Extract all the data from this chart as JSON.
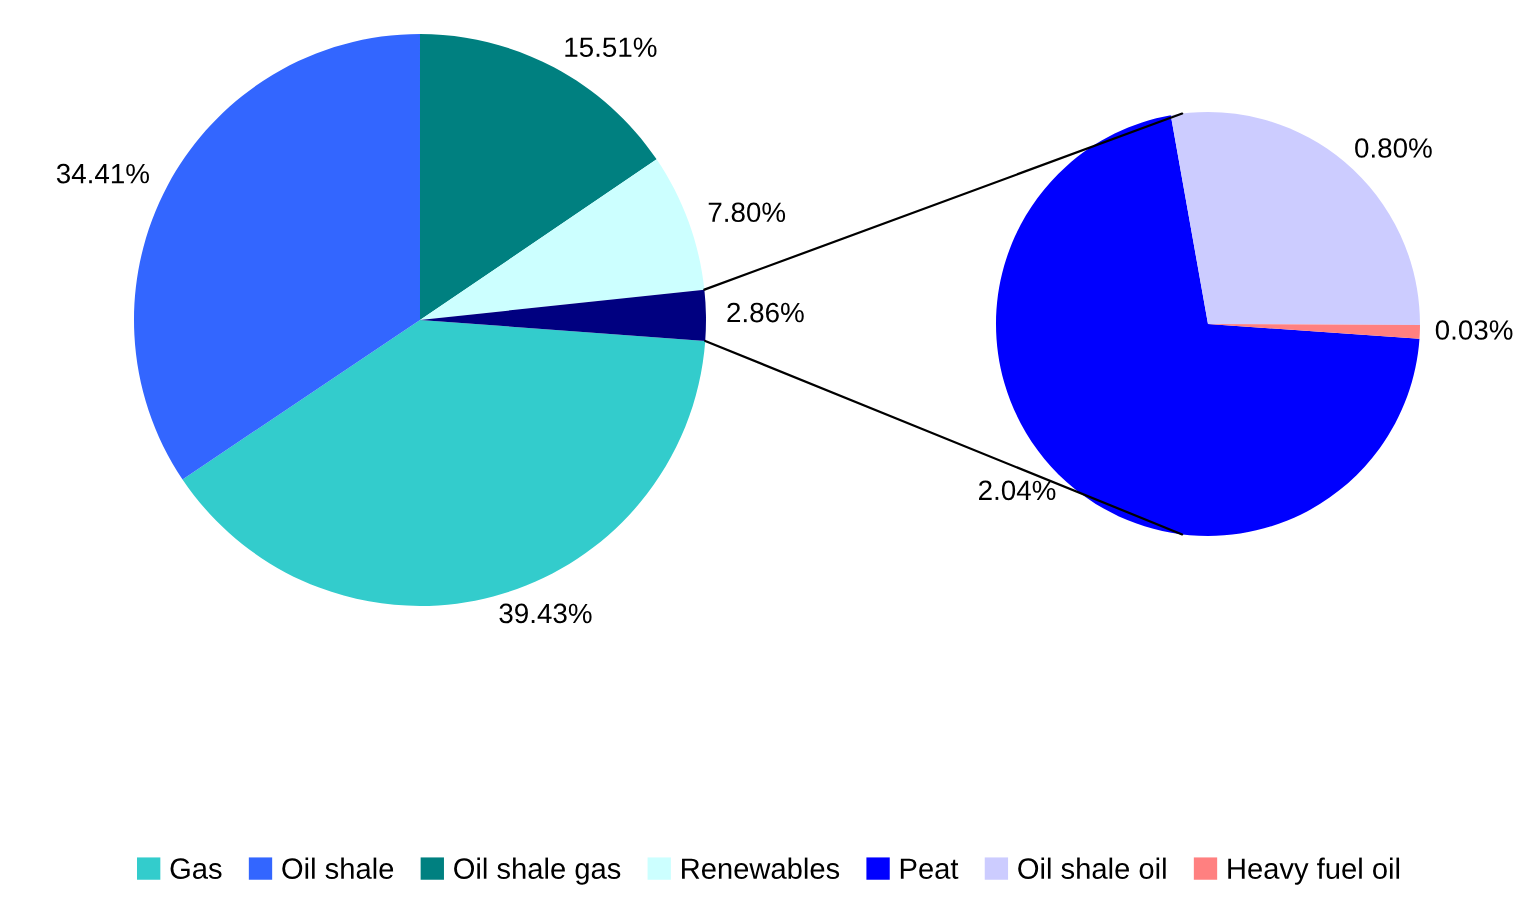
{
  "chart_data": [
    {
      "type": "pie",
      "categories": [
        "Gas",
        "Oil shale",
        "Oil shale gas",
        "Renewables",
        null
      ],
      "values": [
        39.43,
        34.41,
        15.51,
        7.8,
        2.86
      ],
      "colors": [
        "#33cccc",
        "#3366ff",
        "#008080",
        "#ccffff",
        "#000080"
      ],
      "value_labels": [
        "39.43%",
        "34.41%",
        "15.51%",
        "7.80%",
        "2.86%"
      ],
      "legend": "bottom"
    },
    {
      "type": "pie",
      "categories": [
        "Peat",
        "Oil shale oil",
        "Heavy fuel oil"
      ],
      "values": [
        2.04,
        0.8,
        0.03
      ],
      "colors": [
        "#0000ff",
        "#ccccff",
        "#ff8080"
      ],
      "value_labels": [
        "2.04%",
        "0.80%",
        "0.03%"
      ],
      "legend": "bottom"
    }
  ]
}
